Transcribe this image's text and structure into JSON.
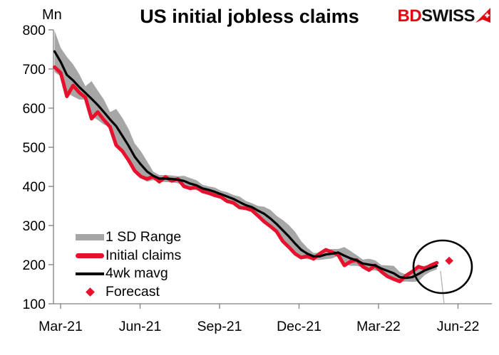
{
  "title": "US initial jobless claims",
  "unit_label": "Mn",
  "logo": {
    "text_red": "BD",
    "text_black": "SWISS",
    "arrow_color": "#e30613"
  },
  "legend": {
    "items": [
      {
        "label": "1 SD Range",
        "swatch": "band",
        "color": "#a6a6a6"
      },
      {
        "label": "Initial claims",
        "swatch": "thick-line",
        "color": "#e8112d"
      },
      {
        "label": "4wk mavg",
        "swatch": "line",
        "color": "#000000"
      },
      {
        "label": "Forecast",
        "swatch": "diamond",
        "color": "#e8112d"
      }
    ]
  },
  "chart_data": {
    "type": "line",
    "title": "US initial jobless claims",
    "ylabel": "Mn",
    "ylim": [
      100,
      800
    ],
    "y_ticks": [
      800,
      700,
      600,
      500,
      400,
      300,
      200,
      100
    ],
    "x_tick_labels": [
      "Mar-21",
      "Jun-21",
      "Sep-21",
      "Dec-21",
      "Mar-22",
      "Jun-22"
    ],
    "x_frequency": "weekly",
    "axis_color": "#808080",
    "legend_position": "inside lower-left",
    "grid": false,
    "series": [
      {
        "name": "1 SD Range",
        "type": "band",
        "color": "#a6a6a6",
        "upper": [
          798,
          754,
          731,
          712,
          687,
          656,
          669,
          645,
          622,
          590,
          598,
          575,
          547,
          510,
          490,
          464,
          438,
          429,
          429,
          428,
          426,
          427,
          421,
          416,
          404,
          400,
          397,
          389,
          385,
          378,
          374,
          363,
          357,
          350,
          348,
          340,
          325,
          314,
          301,
          284,
          260,
          243,
          230,
          230,
          238,
          240,
          240,
          245,
          235,
          224,
          213,
          215,
          211,
          199,
          198,
          197,
          181,
          175,
          182,
          196,
          197,
          200,
          206
        ],
        "lower": [
          692,
          681,
          639,
          630,
          622,
          622,
          580,
          570,
          558,
          552,
          511,
          483,
          460,
          441,
          421,
          412,
          416,
          411,
          411,
          410,
          408,
          401,
          393,
          390,
          386,
          382,
          375,
          371,
          363,
          357,
          346,
          342,
          337,
          327,
          311,
          296,
          284,
          262,
          243,
          225,
          215,
          214,
          212,
          212,
          214,
          216,
          222,
          202,
          197,
          197,
          193,
          186,
          185,
          181,
          170,
          159,
          155,
          157,
          156,
          157,
          173,
          182,
          188
        ]
      },
      {
        "name": "Initial claims",
        "type": "line",
        "color": "#e8112d",
        "values": [
          705,
          690,
          630,
          658,
          640,
          627,
          573,
          590,
          570,
          552,
          505,
          490,
          467,
          440,
          425,
          419,
          425,
          412,
          424,
          414,
          419,
          400,
          395,
          398,
          387,
          383,
          377,
          373,
          362,
          358,
          346,
          344,
          339,
          325,
          310,
          298,
          285,
          260,
          245,
          228,
          218,
          222,
          215,
          228,
          238,
          232,
          225,
          198,
          208,
          212,
          195,
          186,
          198,
          182,
          170,
          163,
          157,
          172,
          182,
          195,
          190,
          198,
          205
        ]
      },
      {
        "name": "4wk mavg",
        "type": "line",
        "color": "#000000",
        "values": [
          745,
          718,
          685,
          671,
          654,
          639,
          624,
          608,
          590,
          571,
          554,
          529,
          504,
          476,
          456,
          438,
          427,
          420,
          420,
          419,
          417,
          414,
          407,
          403,
          395,
          391,
          386,
          380,
          374,
          368,
          360,
          352,
          347,
          338,
          330,
          318,
          304,
          288,
          272,
          254,
          238,
          228,
          221,
          221,
          226,
          228,
          231,
          223,
          216,
          211,
          203,
          200,
          198,
          190,
          184,
          178,
          168,
          166,
          168,
          176,
          185,
          191,
          197
        ]
      },
      {
        "name": "Forecast",
        "type": "point",
        "marker": "diamond",
        "color": "#e8112d",
        "value": 210,
        "week_index": 64
      }
    ],
    "annotations": {
      "highlight_circle_around_latest": true,
      "leader_line_to_axis": true
    }
  }
}
